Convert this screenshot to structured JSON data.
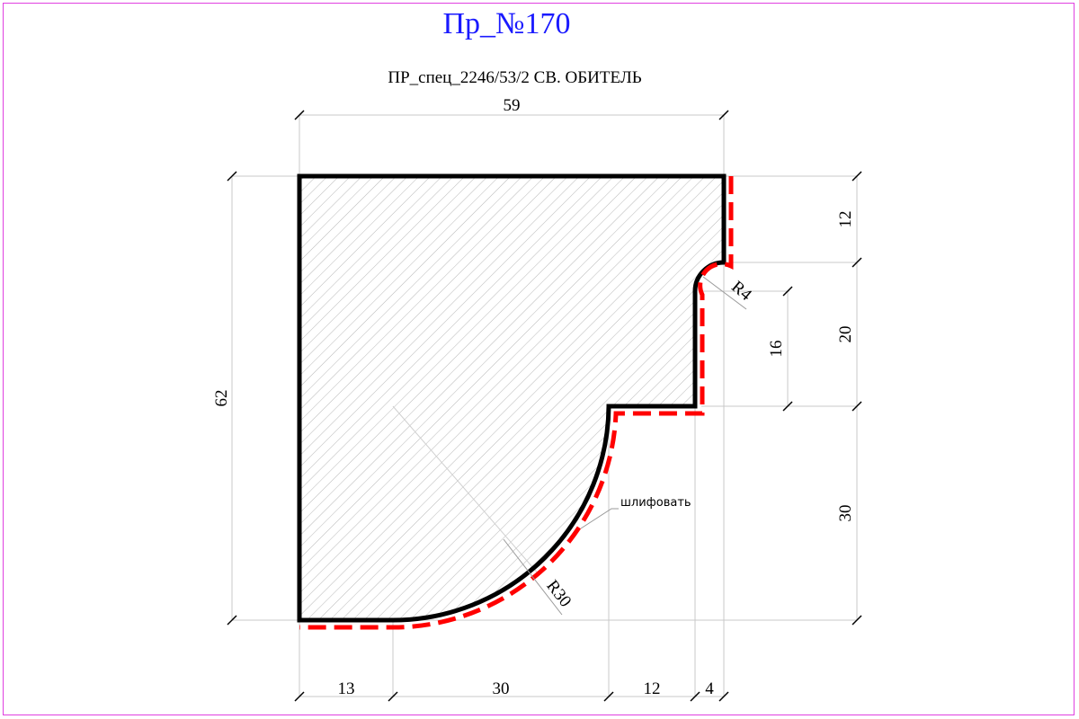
{
  "title": "Пр_№170",
  "subtitle": "ПР_спец_2246/53/2 СВ. ОБИТЕЛЬ",
  "dimensions": {
    "top_width": "59",
    "left_height": "62",
    "right_top": "12",
    "right_middle": "20",
    "right_bottom": "30",
    "inner_16": "16",
    "bottom_13": "13",
    "bottom_30": "30",
    "bottom_12": "12",
    "bottom_4": "4",
    "radius_small": "R4",
    "radius_large": "R30"
  },
  "note": "шлифовать",
  "colors": {
    "title": "#1a1aff",
    "profile_outline": "#000000",
    "sanding_line": "#ff0000",
    "hatch": "#b0b0b0",
    "frame": "#e040e0"
  }
}
